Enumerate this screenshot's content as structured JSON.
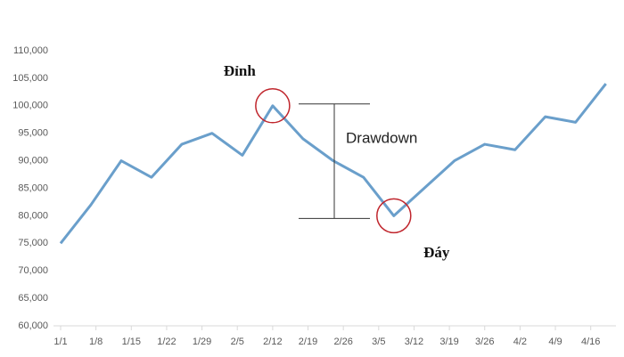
{
  "chart_data": {
    "type": "line",
    "x": [
      0,
      6,
      12,
      18,
      24,
      30,
      36,
      42,
      48,
      54,
      60,
      66,
      72,
      78,
      84,
      90,
      96,
      102,
      108
    ],
    "series": [
      {
        "color": "#6a9fcb",
        "values": [
          75000,
          82000,
          90000,
          87000,
          93000,
          95000,
          91000,
          100000,
          94000,
          90000,
          87000,
          80000,
          85000,
          90000,
          93000,
          92000,
          98000,
          97000,
          104000
        ]
      }
    ],
    "xlim": [
      0,
      110
    ],
    "xticks": [
      {
        "value": 0,
        "label": "1/1"
      },
      {
        "value": 7,
        "label": "1/8"
      },
      {
        "value": 14,
        "label": "1/15"
      },
      {
        "value": 21,
        "label": "1/22"
      },
      {
        "value": 28,
        "label": "1/29"
      },
      {
        "value": 35,
        "label": "2/5"
      },
      {
        "value": 42,
        "label": "2/12"
      },
      {
        "value": 49,
        "label": "2/19"
      },
      {
        "value": 56,
        "label": "2/26"
      },
      {
        "value": 63,
        "label": "3/5"
      },
      {
        "value": 70,
        "label": "3/12"
      },
      {
        "value": 77,
        "label": "3/19"
      },
      {
        "value": 84,
        "label": "3/26"
      },
      {
        "value": 91,
        "label": "4/2"
      },
      {
        "value": 98,
        "label": "4/9"
      },
      {
        "value": 105,
        "label": "4/16"
      }
    ],
    "ylim": [
      60000,
      110000
    ],
    "yticks": [
      {
        "value": 60000,
        "label": "60,000"
      },
      {
        "value": 65000,
        "label": "65,000"
      },
      {
        "value": 70000,
        "label": "70,000"
      },
      {
        "value": 75000,
        "label": "75,000"
      },
      {
        "value": 80000,
        "label": "80,000"
      },
      {
        "value": 85000,
        "label": "85,000"
      },
      {
        "value": 90000,
        "label": "90,000"
      },
      {
        "value": 95000,
        "label": "95,000"
      },
      {
        "value": 100000,
        "label": "100,000"
      },
      {
        "value": 105000,
        "label": "105,000"
      },
      {
        "value": 110000,
        "label": "110,000"
      }
    ],
    "grid": false,
    "annotations": {
      "peak": "Đỉnh",
      "trough": "Đáy",
      "drawdown": "Drawdown"
    }
  }
}
